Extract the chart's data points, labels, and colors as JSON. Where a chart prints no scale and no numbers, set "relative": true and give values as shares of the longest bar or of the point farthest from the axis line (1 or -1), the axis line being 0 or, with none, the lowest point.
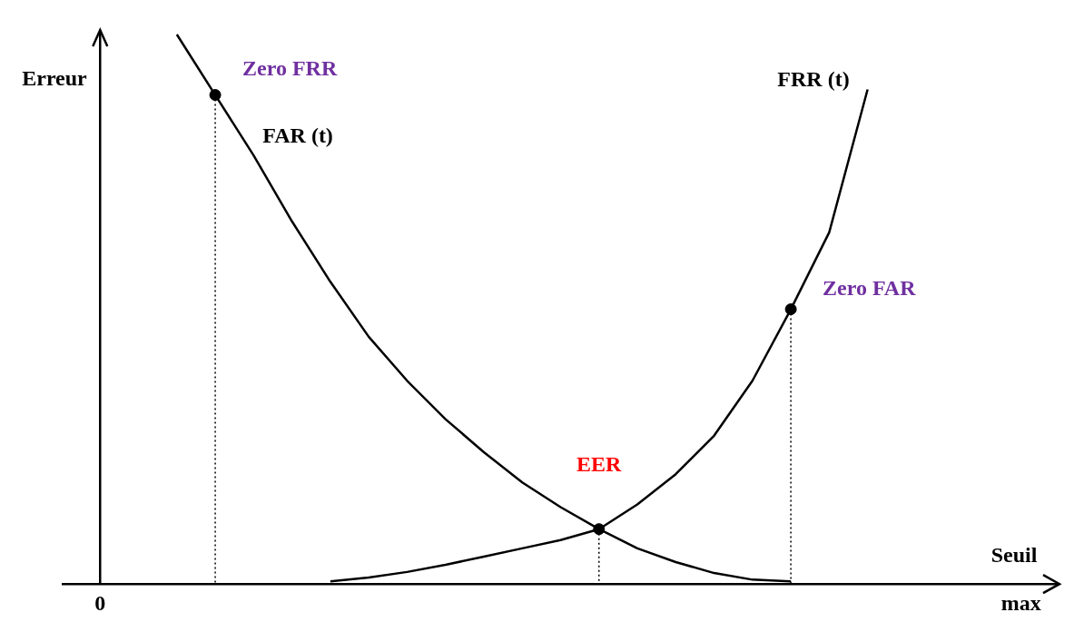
{
  "chart_data": {
    "type": "line",
    "relative": true,
    "xlabel": "Seuil",
    "ylabel": "Erreur",
    "marker": "none",
    "categories": [
      null,
      "0",
      null,
      null,
      null,
      null,
      null,
      null,
      null,
      null,
      null,
      null,
      null,
      null,
      null,
      null,
      null,
      null,
      null,
      null,
      null,
      null,
      null,
      null,
      null,
      "max",
      null
    ],
    "series": [
      {
        "name": "FAR (t)",
        "color": "#000000",
        "values": [
          null,
          null,
          null,
          1.0,
          0.89,
          0.78,
          0.66,
          0.55,
          0.45,
          0.37,
          0.3,
          0.24,
          0.185,
          0.14,
          0.1,
          0.065,
          0.04,
          0.02,
          0.008,
          0.005,
          null,
          null,
          null,
          null,
          null,
          null,
          null
        ]
      },
      {
        "name": "FRR (t)",
        "color": "#000000",
        "values": [
          null,
          null,
          null,
          null,
          null,
          null,
          null,
          0.005,
          0.012,
          0.022,
          0.035,
          0.05,
          0.065,
          0.08,
          0.1,
          0.145,
          0.2,
          0.27,
          0.37,
          0.5,
          0.64,
          0.9,
          null,
          null,
          null,
          null,
          null
        ]
      },
      {
        "type": "scatter",
        "marker": "circle",
        "line_style": "dotted",
        "color": "#000000",
        "values": [
          null,
          null,
          null,
          null,
          0.89,
          null,
          null,
          null,
          null,
          null,
          null,
          null,
          null,
          null,
          0.1,
          null,
          null,
          null,
          null,
          0.5,
          null,
          null,
          null,
          null,
          null,
          null,
          null
        ]
      }
    ],
    "annotations": [
      "Zero FRR",
      "EER",
      "Zero FAR"
    ]
  }
}
